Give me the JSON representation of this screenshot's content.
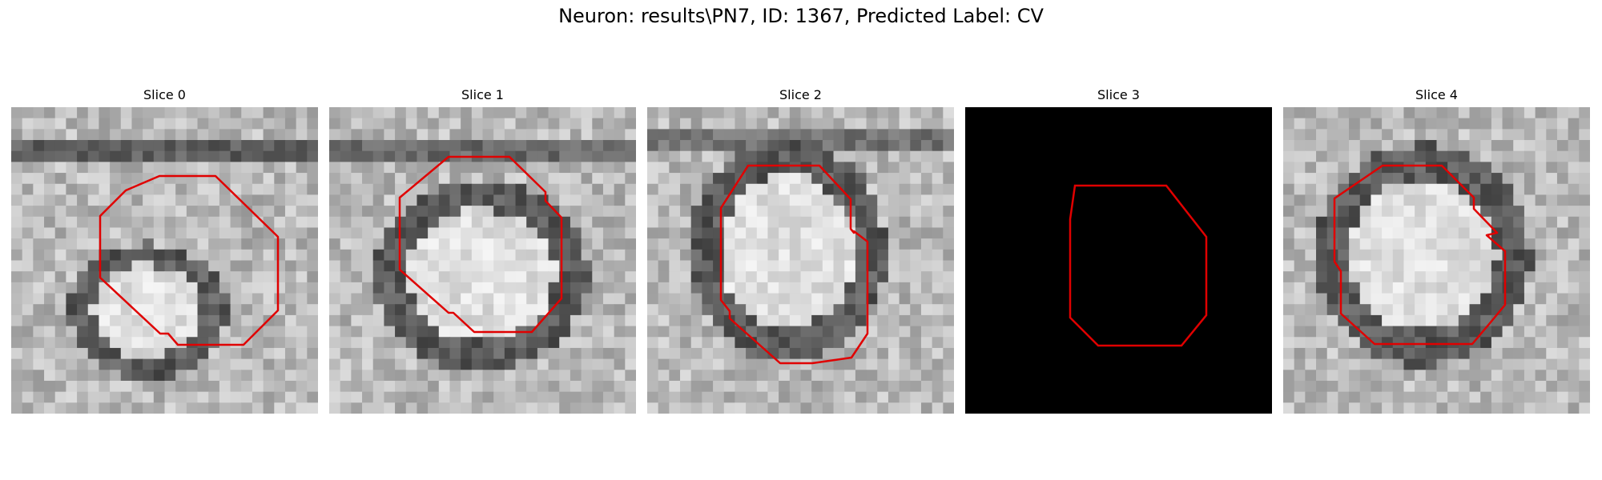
{
  "figure": {
    "title": "Neuron: results\\PN7, ID: 1367, Predicted Label: CV"
  },
  "style": {
    "contour_color": "#e00000",
    "background": "#ffffff"
  },
  "slices": [
    {
      "title": "Slice 0",
      "blank": false,
      "seed": 11
    },
    {
      "title": "Slice 1",
      "blank": false,
      "seed": 23
    },
    {
      "title": "Slice 2",
      "blank": false,
      "seed": 37
    },
    {
      "title": "Slice 3",
      "blank": true,
      "seed": 0
    },
    {
      "title": "Slice 4",
      "blank": false,
      "seed": 53
    }
  ]
}
